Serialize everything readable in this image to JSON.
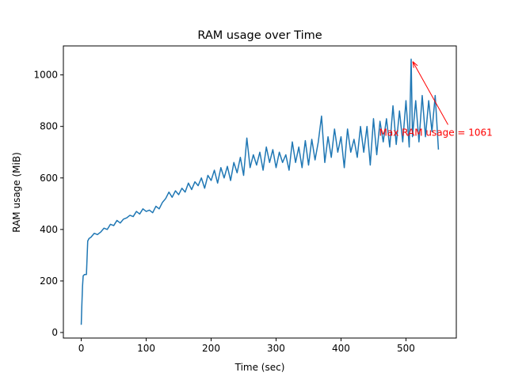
{
  "chart_data": {
    "type": "line",
    "title": "RAM usage over Time",
    "x_label": "Time (sec)",
    "y_label": "RAM usage (MiB)",
    "x": [
      0,
      1,
      2,
      3,
      5,
      8,
      10,
      12,
      15,
      20,
      25,
      30,
      35,
      40,
      45,
      50,
      55,
      60,
      65,
      70,
      75,
      80,
      85,
      90,
      95,
      100,
      105,
      110,
      115,
      120,
      125,
      130,
      135,
      140,
      145,
      150,
      155,
      160,
      165,
      170,
      175,
      180,
      185,
      190,
      195,
      200,
      205,
      210,
      215,
      220,
      225,
      230,
      235,
      240,
      245,
      250,
      255,
      260,
      265,
      270,
      275,
      280,
      285,
      290,
      295,
      300,
      305,
      310,
      315,
      320,
      325,
      330,
      335,
      340,
      345,
      350,
      355,
      360,
      365,
      370,
      375,
      380,
      385,
      390,
      395,
      400,
      405,
      410,
      415,
      420,
      425,
      430,
      435,
      440,
      445,
      450,
      455,
      460,
      465,
      470,
      475,
      480,
      485,
      490,
      495,
      500,
      505,
      508,
      510,
      515,
      520,
      525,
      530,
      535,
      540,
      545,
      550
    ],
    "series": [
      {
        "name": "RAM usage",
        "color": "#1f77b4",
        "values": [
          30,
          110,
          180,
          220,
          225,
          225,
          355,
          365,
          370,
          385,
          380,
          390,
          405,
          400,
          420,
          415,
          435,
          425,
          440,
          445,
          455,
          450,
          470,
          460,
          480,
          470,
          475,
          465,
          490,
          480,
          505,
          520,
          545,
          525,
          550,
          535,
          560,
          545,
          580,
          555,
          585,
          570,
          600,
          560,
          610,
          590,
          630,
          580,
          640,
          600,
          645,
          590,
          660,
          620,
          680,
          610,
          755,
          640,
          690,
          650,
          700,
          630,
          720,
          660,
          710,
          640,
          700,
          660,
          690,
          630,
          740,
          660,
          720,
          640,
          745,
          650,
          750,
          670,
          740,
          840,
          660,
          760,
          680,
          790,
          700,
          760,
          640,
          790,
          700,
          750,
          680,
          800,
          700,
          800,
          650,
          830,
          690,
          820,
          740,
          830,
          720,
          880,
          730,
          860,
          740,
          900,
          720,
          1061,
          760,
          900,
          740,
          920,
          760,
          900,
          780,
          920,
          710
        ]
      }
    ],
    "xlim": [
      -27.5,
      577.5
    ],
    "ylim": [
      -21.55,
      1112.55
    ],
    "xticks": [
      0,
      100,
      200,
      300,
      400,
      500
    ],
    "yticks": [
      0,
      200,
      400,
      600,
      800,
      1000
    ],
    "annotation": {
      "text": "Max RAM usage = 1061",
      "x": 508,
      "y": 1061,
      "text_x": 458.6,
      "text_y": 776,
      "color": "red"
    }
  }
}
